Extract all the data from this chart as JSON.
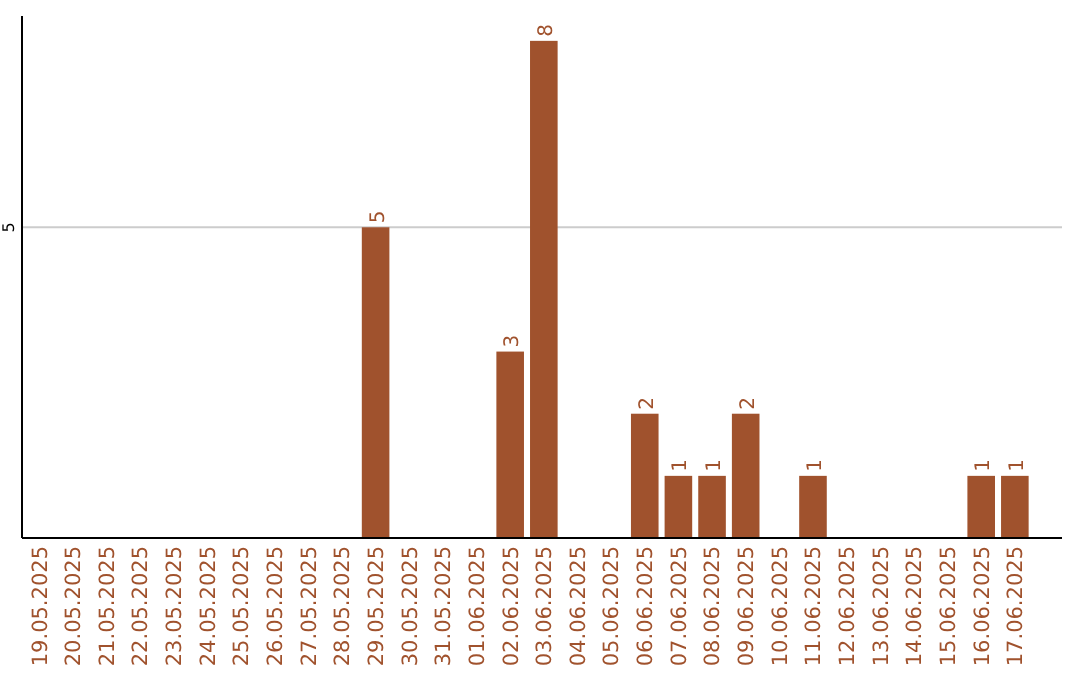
{
  "chart_data": {
    "type": "bar",
    "categories": [
      "19.05.2025",
      "20.05.2025",
      "21.05.2025",
      "22.05.2025",
      "23.05.2025",
      "24.05.2025",
      "25.05.2025",
      "26.05.2025",
      "27.05.2025",
      "28.05.2025",
      "29.05.2025",
      "30.05.2025",
      "31.05.2025",
      "01.06.2025",
      "02.06.2025",
      "03.06.2025",
      "04.06.2025",
      "05.06.2025",
      "06.06.2025",
      "07.06.2025",
      "08.06.2025",
      "09.06.2025",
      "10.06.2025",
      "11.06.2025",
      "12.06.2025",
      "13.06.2025",
      "14.06.2025",
      "15.06.2025",
      "16.06.2025",
      "17.06.2025"
    ],
    "values": [
      0,
      0,
      0,
      0,
      0,
      0,
      0,
      0,
      0,
      0,
      5,
      0,
      0,
      0,
      3,
      8,
      0,
      0,
      2,
      1,
      1,
      2,
      0,
      1,
      0,
      0,
      0,
      0,
      1,
      1
    ],
    "value_labels": [
      null,
      null,
      null,
      null,
      null,
      null,
      null,
      null,
      null,
      null,
      "5",
      null,
      null,
      null,
      "3",
      "8",
      null,
      null,
      "2",
      "1",
      "1",
      "2",
      null,
      "1",
      null,
      null,
      null,
      null,
      "1",
      "1"
    ],
    "color": "#a0522d",
    "ylim": [
      0,
      8.4
    ],
    "yticks": [
      5
    ],
    "grid": "y"
  }
}
